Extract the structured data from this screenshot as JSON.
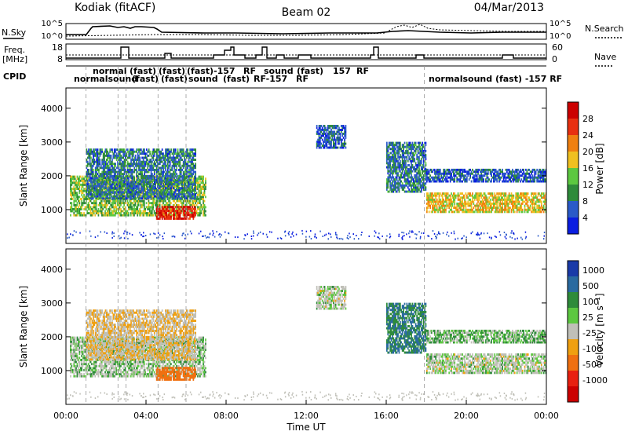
{
  "header": {
    "radar": "Kodiak (fitACF)",
    "beam": "Beam 02",
    "date": "04/Mar/2013"
  },
  "top_panels": {
    "nsky_label": "N.Sky",
    "nsearch_label": "N.Search",
    "nsky_ticks": [
      "10^5",
      "10^0"
    ],
    "nsearch_ticks": [
      "10^5",
      "10^0"
    ],
    "freq_label_1": "Freq.",
    "freq_label_2": "[MHz]",
    "freq_ticks": [
      "18",
      "8"
    ],
    "nave_label": "Nave",
    "nave_ticks": [
      "60",
      "0"
    ],
    "cpid_label": "CPID",
    "cpid_labels_upper": [
      "normal",
      "(fast)",
      "(fast)",
      "(fast)",
      "-157",
      "RF",
      "sound",
      "(fast)",
      "157",
      "RF"
    ],
    "cpid_labels_lower": [
      "normalsound",
      "(fast)",
      "(fast)",
      "sound",
      "(fast)",
      "RF-157",
      "RF"
    ],
    "cpid_right": "normalsound (fast) -157 RF"
  },
  "power_panel": {
    "ylabel": "Slant Range [km]",
    "yticks": [
      "1000",
      "2000",
      "3000",
      "4000"
    ],
    "colorbar_label": "Power [dB]",
    "colorbar_ticks": [
      "4",
      "8",
      "12",
      "16",
      "20",
      "24",
      "28"
    ],
    "colorbar_colors": [
      "#0a1de0",
      "#2a5ac8",
      "#2e8b3a",
      "#5cc840",
      "#f0c020",
      "#f08010",
      "#e83010",
      "#cc0000"
    ]
  },
  "velocity_panel": {
    "ylabel": "Slant Range [km]",
    "yticks": [
      "1000",
      "2000",
      "3000",
      "4000"
    ],
    "colorbar_label": "Velocity [m s⁻¹]",
    "colorbar_ticks": [
      "1000",
      "500",
      "100",
      "25",
      "-25",
      "-100",
      "-500",
      "-1000"
    ],
    "colorbar_colors": [
      "#1a3aa8",
      "#2a6aa0",
      "#2e8b3a",
      "#5cc840",
      "#c0c0b8",
      "#f0a010",
      "#f07010",
      "#e82010",
      "#cc0000"
    ]
  },
  "xaxis": {
    "ticks": [
      "00:00",
      "04:00",
      "08:00",
      "12:00",
      "16:00",
      "20:00",
      "00:00"
    ],
    "label": "Time UT"
  },
  "chart_data": {
    "type": "heatmap",
    "title": "",
    "xlabel": "Time UT",
    "ylabel": "Slant Range [km]",
    "xlim": [
      "00:00",
      "00:00"
    ],
    "ylim": [
      0,
      4600
    ],
    "power_scale": [
      0,
      32
    ],
    "velocity_scale": [
      -1000,
      1000
    ],
    "regions": [
      {
        "t_start": 0.2,
        "t_end": 7.0,
        "r_min": 800,
        "r_max": 2000,
        "power": 14,
        "velocity": 10
      },
      {
        "t_start": 1.0,
        "t_end": 6.5,
        "r_min": 1300,
        "r_max": 2800,
        "power": 8,
        "velocity": -20
      },
      {
        "t_start": 4.5,
        "t_end": 6.5,
        "r_min": 700,
        "r_max": 1100,
        "power": 28,
        "velocity": -200
      },
      {
        "t_start": 12.5,
        "t_end": 14.0,
        "r_min": 2800,
        "r_max": 3500,
        "power": 6,
        "velocity": 0
      },
      {
        "t_start": 16.0,
        "t_end": 18.0,
        "r_min": 1500,
        "r_max": 3000,
        "power": 8,
        "velocity": 100
      },
      {
        "t_start": 18.0,
        "t_end": 24.0,
        "r_min": 900,
        "r_max": 1500,
        "power": 18,
        "velocity": 0
      },
      {
        "t_start": 18.0,
        "t_end": 24.0,
        "r_min": 1800,
        "r_max": 2200,
        "power": 6,
        "velocity": 20
      }
    ]
  }
}
